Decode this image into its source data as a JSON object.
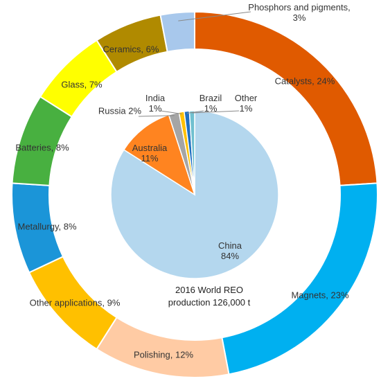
{
  "chart_data": [
    {
      "type": "pie",
      "subtype": "donut",
      "series": [
        {
          "label": "Catalysts",
          "display": "Catalysts, 24%",
          "value": 24,
          "color": "#E05A00"
        },
        {
          "label": "Magnets",
          "display": "Magnets, 23%",
          "value": 23,
          "color": "#00B0F0"
        },
        {
          "label": "Polishing",
          "display": "Polishing, 12%",
          "value": 12,
          "color": "#FFCBA4"
        },
        {
          "label": "Other applications",
          "display": "Other applications, 9%",
          "value": 9,
          "color": "#FFC000"
        },
        {
          "label": "Metallurgy",
          "display": "Metallurgy, 8%",
          "value": 8,
          "color": "#1B95D8"
        },
        {
          "label": "Batteries",
          "display": "Batteries, 8%",
          "value": 8,
          "color": "#48B040"
        },
        {
          "label": "Glass",
          "display": "Glass, 7%",
          "value": 7,
          "color": "#FFFF00"
        },
        {
          "label": "Ceramics",
          "display": "Ceramics, 6%",
          "value": 6,
          "color": "#B08A00"
        },
        {
          "label": "Phosphors and pigments",
          "display": [
            "Phosphors and pigments,",
            "3%"
          ],
          "value": 3,
          "color": "#A8C8EC"
        }
      ]
    },
    {
      "type": "pie",
      "series": [
        {
          "label": "China",
          "display": [
            "China",
            "84%"
          ],
          "value": 84,
          "color": "#B4D7EE"
        },
        {
          "label": "Australia",
          "display": [
            "Australia",
            "11%"
          ],
          "value": 11,
          "color": "#FF8420"
        },
        {
          "label": "Russia",
          "display": [
            "Russia 2%"
          ],
          "value": 2,
          "color": "#A5A5A5"
        },
        {
          "label": "India",
          "display": [
            "India",
            "1%"
          ],
          "value": 1,
          "color": "#FFC000"
        },
        {
          "label": "Brazil",
          "display": [
            "Brazil",
            "1%"
          ],
          "value": 1,
          "color": "#1F6FC0"
        },
        {
          "label": "Other",
          "display": [
            "Other",
            "1%"
          ],
          "value": 1,
          "color": "#70C0D0"
        }
      ]
    }
  ],
  "center_text": [
    "2016 World REO",
    "production 126,000 t"
  ]
}
